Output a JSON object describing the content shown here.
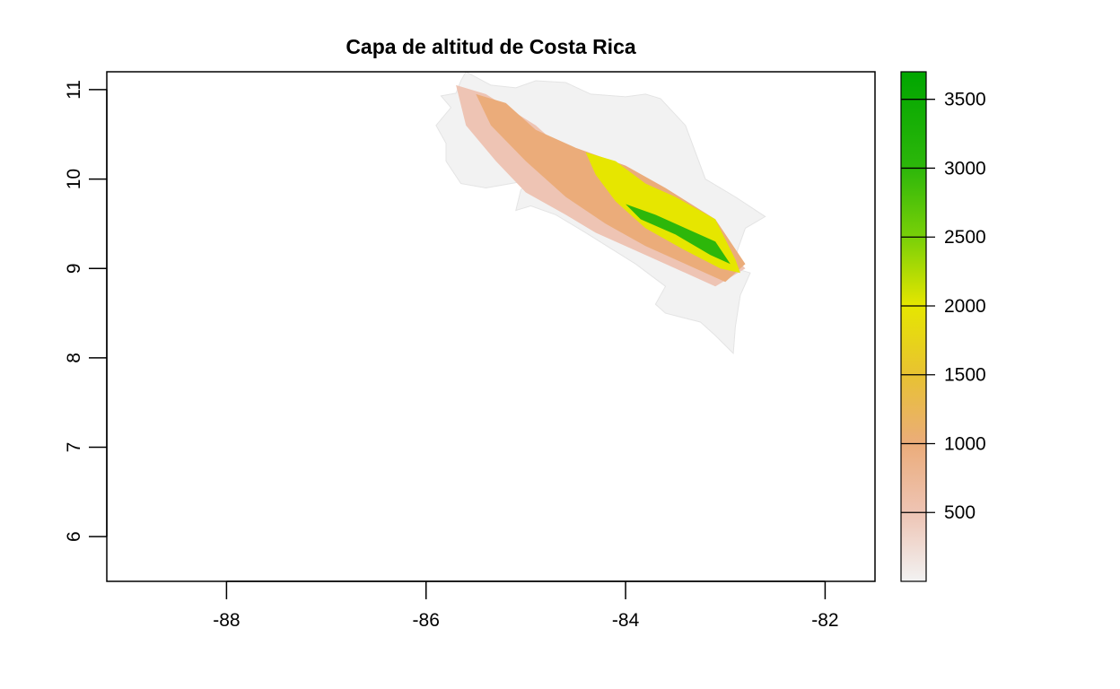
{
  "chart_data": {
    "type": "heatmap",
    "title": "Capa de altitud de Costa Rica",
    "xlabel": "",
    "ylabel": "",
    "xlim": [
      -89.2,
      -81.5
    ],
    "ylim": [
      5.5,
      11.2
    ],
    "x_ticks": [
      -88,
      -86,
      -84,
      -82
    ],
    "x_tick_labels": [
      "-88",
      "-86",
      "-84",
      "-82"
    ],
    "y_ticks": [
      6,
      7,
      8,
      9,
      10,
      11
    ],
    "y_tick_labels": [
      "6",
      "7",
      "8",
      "9",
      "10",
      "11"
    ],
    "colorbar": {
      "range": [
        0,
        3700
      ],
      "ticks": [
        500,
        1000,
        1500,
        2000,
        2500,
        3000,
        3500
      ],
      "tick_labels": [
        "500",
        "1000",
        "1500",
        "2000",
        "2500",
        "3000",
        "3500"
      ],
      "stops": [
        {
          "value": 0,
          "color": "#f2f2f2"
        },
        {
          "value": 500,
          "color": "#eec4b4"
        },
        {
          "value": 1000,
          "color": "#ebac7a"
        },
        {
          "value": 1500,
          "color": "#e8c232"
        },
        {
          "value": 2000,
          "color": "#e6e600"
        },
        {
          "value": 2500,
          "color": "#79d008"
        },
        {
          "value": 3000,
          "color": "#2db70a"
        },
        {
          "value": 3700,
          "color": "#00a600"
        }
      ]
    },
    "region": {
      "outline": [
        [
          -85.85,
          10.93
        ],
        [
          -85.7,
          10.96
        ],
        [
          -85.65,
          11.1
        ],
        [
          -85.6,
          11.2
        ],
        [
          -85.35,
          11.05
        ],
        [
          -85.1,
          11.02
        ],
        [
          -84.9,
          11.1
        ],
        [
          -84.6,
          11.08
        ],
        [
          -84.35,
          10.95
        ],
        [
          -84.0,
          10.92
        ],
        [
          -83.8,
          10.95
        ],
        [
          -83.65,
          10.9
        ],
        [
          -83.4,
          10.6
        ],
        [
          -83.2,
          10.0
        ],
        [
          -82.9,
          9.8
        ],
        [
          -82.6,
          9.58
        ],
        [
          -82.8,
          9.45
        ],
        [
          -82.88,
          9.2
        ],
        [
          -82.9,
          9.0
        ],
        [
          -82.75,
          8.95
        ],
        [
          -82.85,
          8.7
        ],
        [
          -82.9,
          8.35
        ],
        [
          -82.92,
          8.05
        ],
        [
          -83.1,
          8.25
        ],
        [
          -83.25,
          8.4
        ],
        [
          -83.6,
          8.5
        ],
        [
          -83.7,
          8.6
        ],
        [
          -83.6,
          8.8
        ],
        [
          -83.9,
          9.05
        ],
        [
          -84.4,
          9.4
        ],
        [
          -84.7,
          9.6
        ],
        [
          -84.95,
          9.7
        ],
        [
          -85.1,
          9.65
        ],
        [
          -85.05,
          9.88
        ],
        [
          -84.9,
          10.0
        ],
        [
          -85.15,
          9.95
        ],
        [
          -85.4,
          9.9
        ],
        [
          -85.65,
          9.95
        ],
        [
          -85.8,
          10.2
        ],
        [
          -85.8,
          10.4
        ],
        [
          -85.9,
          10.6
        ],
        [
          -85.75,
          10.8
        ]
      ],
      "lowland_band": [
        [
          -85.7,
          11.05
        ],
        [
          -85.4,
          10.95
        ],
        [
          -84.9,
          10.6
        ],
        [
          -84.6,
          10.3
        ],
        [
          -84.1,
          10.1
        ],
        [
          -83.7,
          9.8
        ],
        [
          -83.2,
          9.45
        ],
        [
          -82.8,
          9.0
        ],
        [
          -83.1,
          8.8
        ],
        [
          -83.5,
          9.0
        ],
        [
          -83.9,
          9.2
        ],
        [
          -84.3,
          9.4
        ],
        [
          -84.6,
          9.6
        ],
        [
          -85.0,
          9.85
        ],
        [
          -85.3,
          10.2
        ],
        [
          -85.6,
          10.6
        ]
      ],
      "foothill_band": [
        [
          -85.5,
          10.95
        ],
        [
          -85.2,
          10.85
        ],
        [
          -84.9,
          10.55
        ],
        [
          -84.5,
          10.35
        ],
        [
          -84.0,
          10.15
        ],
        [
          -83.6,
          9.9
        ],
        [
          -83.1,
          9.55
        ],
        [
          -82.8,
          9.05
        ],
        [
          -83.0,
          8.85
        ],
        [
          -83.4,
          9.05
        ],
        [
          -83.8,
          9.25
        ],
        [
          -84.2,
          9.5
        ],
        [
          -84.6,
          9.8
        ],
        [
          -85.0,
          10.2
        ],
        [
          -85.35,
          10.6
        ]
      ],
      "highland_band": [
        [
          -84.4,
          10.3
        ],
        [
          -84.1,
          10.2
        ],
        [
          -83.8,
          9.95
        ],
        [
          -83.5,
          9.8
        ],
        [
          -83.1,
          9.55
        ],
        [
          -82.9,
          9.1
        ],
        [
          -82.85,
          8.95
        ],
        [
          -83.05,
          9.0
        ],
        [
          -83.4,
          9.2
        ],
        [
          -83.8,
          9.45
        ],
        [
          -84.1,
          9.75
        ],
        [
          -84.3,
          10.05
        ]
      ],
      "peak_band": [
        [
          -84.0,
          9.72
        ],
        [
          -83.7,
          9.6
        ],
        [
          -83.4,
          9.45
        ],
        [
          -83.1,
          9.3
        ],
        [
          -82.95,
          9.05
        ],
        [
          -83.15,
          9.15
        ],
        [
          -83.5,
          9.38
        ],
        [
          -83.85,
          9.55
        ]
      ]
    }
  }
}
